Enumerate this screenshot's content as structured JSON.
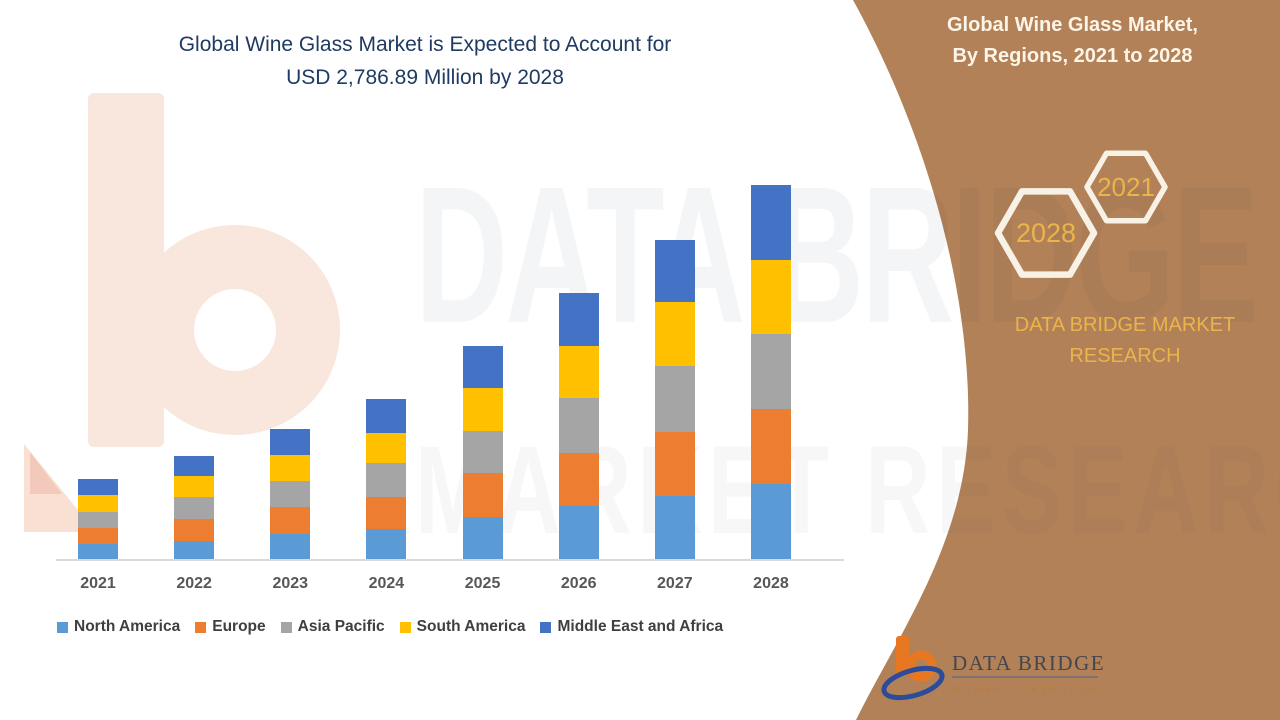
{
  "page": {
    "title_line1": "Global Wine Glass Market is Expected to Account for",
    "title_line2": "USD 2,786.89 Million by 2028"
  },
  "side_panel": {
    "bg_color": "#B28157",
    "heading_line1": "Global Wine Glass Market,",
    "heading_line2": "By Regions, 2021 to 2028",
    "hexagon_small_label": "2021",
    "hexagon_large_label": "2028",
    "hexagon_outline_color": "#F8F1E5",
    "brand_line1": "DATA BRIDGE MARKET",
    "brand_line2": "RESEARCH",
    "accent_color": "#EBB44B"
  },
  "watermark": {
    "line1": "DATA BRIDGE",
    "line2": "MARKET RESEARCH"
  },
  "footer_logo": {
    "name_text": "DATA BRIDGE",
    "tagline_text": "MARKET RESEARCH"
  },
  "chart_data": {
    "type": "bar",
    "stacked": true,
    "title": "Global Wine Glass Market is Expected to Account for USD 2,786.89 Million by 2028",
    "unit": "USD Million",
    "categories": [
      "2021",
      "2022",
      "2023",
      "2024",
      "2025",
      "2026",
      "2027",
      "2028"
    ],
    "series": [
      {
        "name": "North America",
        "color": "#5B9BD5",
        "values": [
          119,
          141,
          193,
          230,
          320,
          401,
          476,
          565
        ]
      },
      {
        "name": "Europe",
        "color": "#ED7D31",
        "values": [
          119,
          163,
          201,
          238,
          327,
          394,
          476,
          557
        ]
      },
      {
        "name": "Asia Pacific",
        "color": "#A5A5A5",
        "values": [
          119,
          163,
          193,
          253,
          312,
          409,
          490,
          557
        ]
      },
      {
        "name": "South America",
        "color": "#FFC000",
        "values": [
          126,
          156,
          193,
          223,
          320,
          386,
          476,
          550
        ]
      },
      {
        "name": "Middle East and Africa",
        "color": "#4472C4",
        "values": [
          119,
          149,
          193,
          253,
          312,
          394,
          461,
          557
        ]
      }
    ],
    "totals_estimated": [
      602,
      772,
      973,
      1197,
      1591,
      1984,
      2379,
      2786.89
    ],
    "highlighted_value_2028": 2786.89,
    "ylim": [
      0,
      2900
    ],
    "axis": {
      "gridlines": false,
      "value_axis_visible": false
    },
    "legend_position": "bottom"
  }
}
